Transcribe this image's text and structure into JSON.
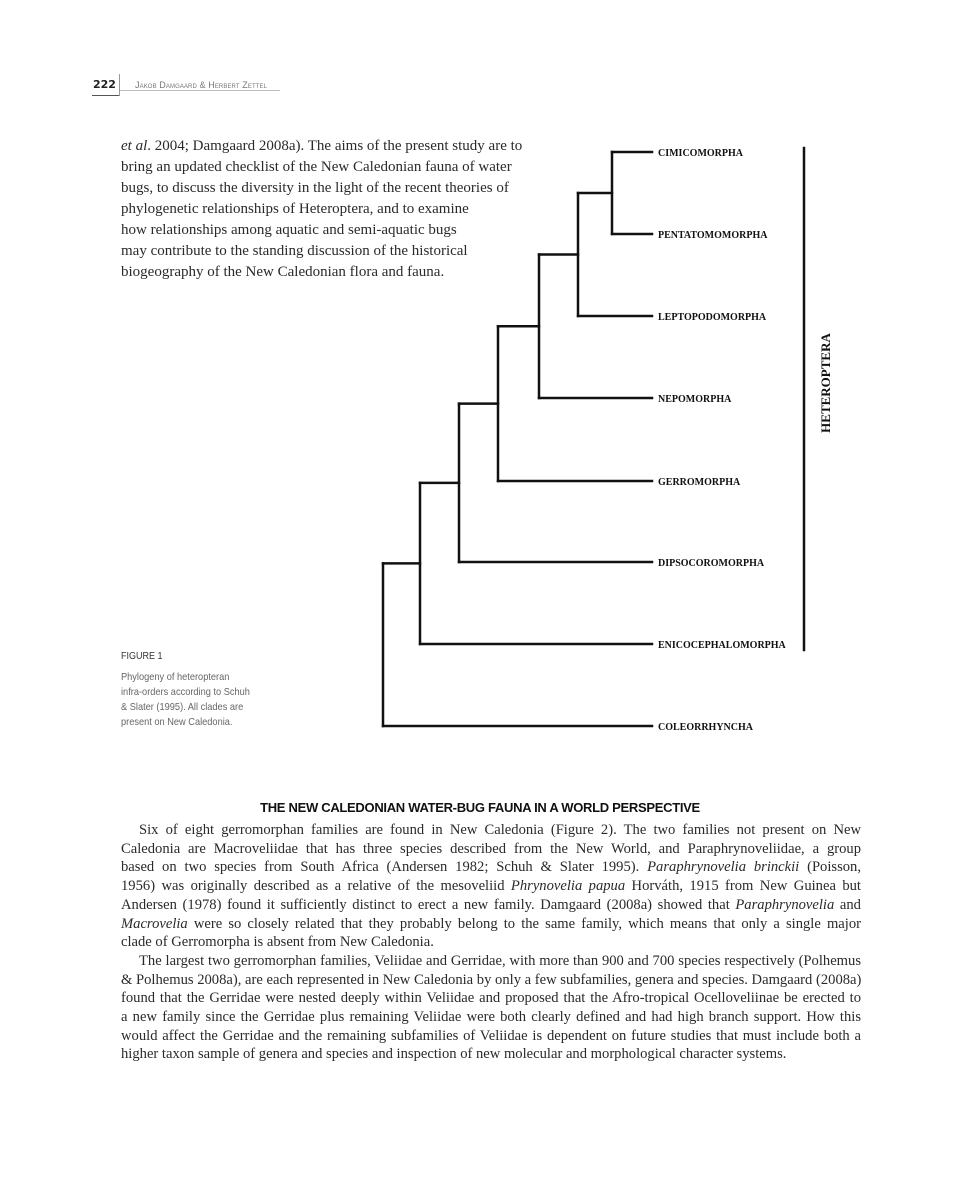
{
  "header": {
    "page_number": "222",
    "running_head": "Jakob Damgaard & Herbert Zettel"
  },
  "intro_lines": [
    [
      {
        "t": "et al",
        "i": true
      },
      {
        "t": ". 2004; Damgaard 2008a). The aims of the present study are to"
      }
    ],
    [
      {
        "t": "bring an updated checklist of the New Caledonian fauna of water"
      }
    ],
    [
      {
        "t": "bugs, to discuss the diversity in the light of the recent theories of"
      }
    ],
    [
      {
        "t": "phylogenetic relationships of Heteroptera, and to examine"
      }
    ],
    [
      {
        "t": "how relationships among aquatic and semi-aquatic bugs"
      }
    ],
    [
      {
        "t": "may contribute to the standing discussion of the historical"
      }
    ],
    [
      {
        "t": "biogeography of the New Caledonian flora and fauna."
      }
    ]
  ],
  "figure": {
    "label": "FIGURE 1",
    "caption_lines": [
      "Phylogeny of heteropteran",
      "infra-orders according to Schuh",
      "& Slater (1995). All clades are",
      "present on New Caledonia."
    ],
    "leaves": [
      "CIMICOMORPHA",
      "PENTATOMOMORPHA",
      "LEPTOPODOMORPHA",
      "NEPOMORPHA",
      "GERROMORPHA",
      "DIPSOCOROMORPHA",
      "ENICOCEPHALOMORPHA",
      "COLEORRHYNCHA"
    ],
    "topology": "((((((((CIMICOMORPHA,PENTATOMOMORPHA),LEPTOPODOMORPHA),NEPOMORPHA),GERROMORPHA),DIPSOCOROMORPHA),ENICOCEPHALOMORPHA),COLEORRHYNCHA)",
    "bracket_label": "HETEROPTERA"
  },
  "section_heading": "THE NEW CALEDONIAN WATER-BUG FAUNA IN A WORLD PERSPECTIVE",
  "body_paragraphs": [
    [
      [
        {
          "t": "Six of eight gerromorphan families are found in New Caledonia (Figure 2). The two families not present on New"
        }
      ],
      [
        {
          "t": "Caledonia are Macroveliidae that has three species described from the New World, and Paraphrynoveliidae, a group"
        }
      ],
      [
        {
          "t": "based on two species from South Africa (Andersen 1982; Schuh & Slater 1995). "
        },
        {
          "t": "Paraphrynovelia brinckii",
          "i": true
        },
        {
          "t": " (Poisson,"
        }
      ],
      [
        {
          "t": "1956) was originally described as a relative of the mesoveliid "
        },
        {
          "t": "Phrynovelia papua",
          "i": true
        },
        {
          "t": " Horváth, 1915 from New Guinea but"
        }
      ],
      [
        {
          "t": "Andersen (1978) found it sufficiently distinct to erect a new family. Damgaard (2008a) showed that "
        },
        {
          "t": "Paraphrynovelia",
          "i": true
        },
        {
          "t": " and"
        }
      ],
      [
        {
          "t": "Macrovelia",
          "i": true
        },
        {
          "t": " were so closely related that they probably belong to the same family, which means that only a single major"
        }
      ],
      [
        {
          "t": "clade of Gerromorpha is absent from New Caledonia."
        }
      ]
    ],
    [
      [
        {
          "t": "The largest two gerromorphan families, Veliidae and Gerridae, with more than 900 and 700 species respectively (Polhemus"
        }
      ],
      [
        {
          "t": "& Polhemus 2008a), are each represented in New Caledonia by only a few subfamilies, genera and species. Damgaard (2008a)"
        }
      ],
      [
        {
          "t": "found that the Gerridae were nested deeply within Veliidae and proposed that the Afro-tropical Ocelloveliinae be erected to"
        }
      ],
      [
        {
          "t": "a new family since the Gerridae plus remaining Veliidae were both clearly defined and had high branch support. How this"
        }
      ],
      [
        {
          "t": "would affect the Gerridae and the remaining subfamilies of Veliidae is dependent on future studies that must include both a"
        }
      ],
      [
        {
          "t": "higher taxon sample of genera and species and inspection of new molecular and morphological character systems."
        }
      ]
    ]
  ]
}
